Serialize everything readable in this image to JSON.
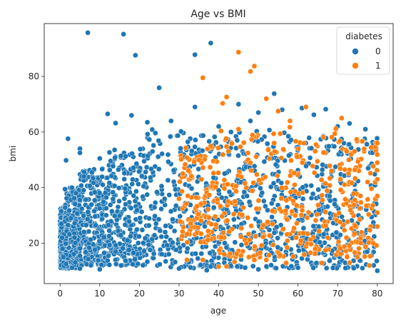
{
  "chart_data": {
    "type": "scatter",
    "title": "Age vs BMI",
    "xlabel": "age",
    "ylabel": "bmi",
    "xlim": [
      -4,
      84
    ],
    "ylim": [
      5.5,
      99
    ],
    "xticks": [
      0,
      10,
      20,
      30,
      40,
      50,
      60,
      70,
      80
    ],
    "yticks": [
      20,
      40,
      60,
      80
    ],
    "grid": false,
    "legend": {
      "title": "diabetes",
      "placement": "top-right",
      "entries": [
        {
          "label": "0",
          "color": "#1f77b4"
        },
        {
          "label": "1",
          "color": "#ff7f0e"
        }
      ]
    },
    "series": [
      {
        "name": "0",
        "color": "#1f77b4",
        "points": [
          [
            7,
            95.7
          ],
          [
            16,
            95.2
          ],
          [
            19,
            87.6
          ],
          [
            38,
            92
          ],
          [
            34,
            87.8
          ],
          [
            25,
            75.9
          ],
          [
            12,
            66.5
          ],
          [
            18,
            66
          ],
          [
            14,
            63.2
          ],
          [
            2,
            57.6
          ],
          [
            5,
            54
          ],
          [
            5,
            52.5
          ],
          [
            1.5,
            49.8
          ],
          [
            54,
            73.8
          ],
          [
            61,
            68.6
          ],
          [
            67,
            68.2
          ],
          [
            73,
            63.1
          ],
          [
            79,
            55.4
          ],
          [
            0.3,
            31.5
          ],
          [
            0.3,
            27
          ],
          [
            0.5,
            22
          ],
          [
            0.6,
            18
          ],
          [
            0.8,
            15
          ],
          [
            0.9,
            13
          ],
          [
            1,
            11.8
          ],
          [
            1.5,
            12.5
          ],
          [
            3,
            11.2
          ],
          [
            5,
            10.9
          ],
          [
            10,
            10.6
          ],
          [
            30,
            10.9
          ],
          [
            37,
            10.3
          ],
          [
            50,
            10.6
          ],
          [
            60,
            11.2
          ],
          [
            72,
            11.1
          ],
          [
            80,
            10.1
          ],
          [
            56,
            68
          ],
          [
            50,
            67
          ],
          [
            34,
            69
          ],
          [
            45,
            70
          ],
          [
            64,
            66.2
          ],
          [
            40,
            62
          ],
          [
            28,
            64
          ],
          [
            22,
            63.5
          ],
          [
            48,
            64
          ],
          [
            70,
            62
          ],
          [
            77,
            61
          ],
          [
            10,
            50.5
          ],
          [
            8,
            45.5
          ],
          [
            6,
            44
          ],
          [
            3,
            40
          ],
          [
            4,
            38
          ]
        ],
        "clouds": [
          [
            0,
            1.5,
            11,
            33
          ],
          [
            1,
            5,
            11,
            40
          ],
          [
            5,
            12,
            12,
            47
          ],
          [
            12,
            22,
            12,
            54
          ],
          [
            22,
            40,
            11,
            61
          ],
          [
            40,
            60,
            11,
            61
          ],
          [
            60,
            80,
            11,
            59
          ],
          [
            3,
            70,
            16,
            42
          ]
        ]
      },
      {
        "name": "1",
        "color": "#ff7f0e",
        "points": [
          [
            45,
            88.7
          ],
          [
            49,
            83.7
          ],
          [
            48,
            81.8
          ],
          [
            36,
            79.5
          ],
          [
            52,
            72
          ],
          [
            42,
            72.6
          ],
          [
            41,
            70.3
          ],
          [
            55,
            67.5
          ],
          [
            62,
            69
          ],
          [
            71,
            65
          ],
          [
            80,
            56
          ],
          [
            80,
            49
          ],
          [
            80,
            43
          ],
          [
            80,
            37
          ],
          [
            80,
            31
          ],
          [
            80,
            26
          ],
          [
            79,
            20
          ],
          [
            78,
            12
          ],
          [
            73,
            13
          ],
          [
            66,
            12.9
          ],
          [
            57,
            12.9
          ],
          [
            52,
            14
          ],
          [
            49,
            14
          ],
          [
            44,
            13.3
          ],
          [
            42,
            11.7
          ],
          [
            40,
            11.6
          ],
          [
            36,
            14
          ],
          [
            32,
            14
          ],
          [
            35,
            50
          ],
          [
            30,
            36
          ],
          [
            38,
            55
          ],
          [
            45,
            61
          ],
          [
            58,
            64
          ]
        ],
        "clouds": [
          [
            30,
            40,
            20,
            55
          ],
          [
            40,
            55,
            15,
            62
          ],
          [
            55,
            70,
            15,
            62
          ],
          [
            70,
            80,
            15,
            58
          ]
        ]
      }
    ]
  }
}
